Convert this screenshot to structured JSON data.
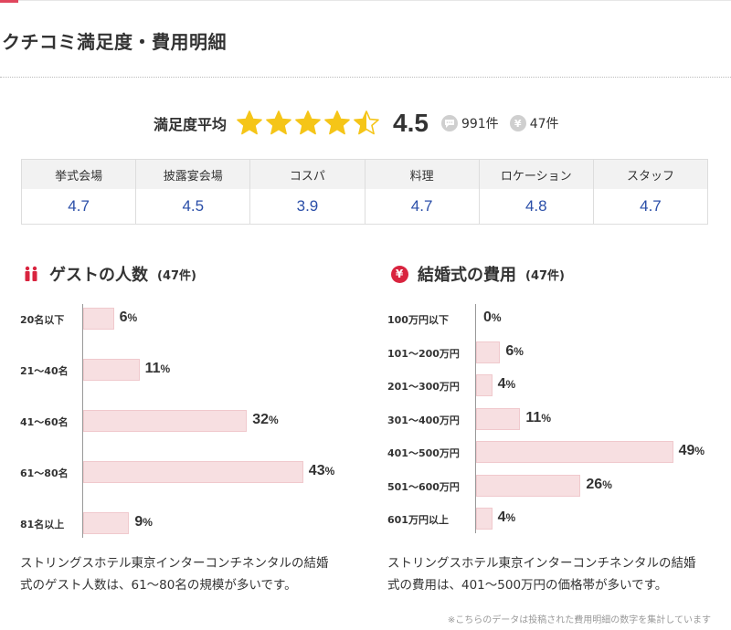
{
  "section_title": "クチコミ満足度・費用明細",
  "summary": {
    "label": "満足度平均",
    "rating": 4.5,
    "rating_text": "4.5",
    "reviews": "991件",
    "costs": "47件",
    "review_icon": "speech-bubble-icon",
    "cost_icon": "yen-icon"
  },
  "scores": [
    {
      "label": "挙式会場",
      "value": "4.7"
    },
    {
      "label": "披露宴会場",
      "value": "4.5"
    },
    {
      "label": "コスパ",
      "value": "3.9"
    },
    {
      "label": "料理",
      "value": "4.7"
    },
    {
      "label": "ロケーション",
      "value": "4.8"
    },
    {
      "label": "スタッフ",
      "value": "4.7"
    }
  ],
  "colors": {
    "accent": "#e0465d",
    "bar": "#f7dfe1",
    "score": "#2a4ea8",
    "star": "#f5c518"
  },
  "guests": {
    "title": "ゲストの人数",
    "count": "(47件)",
    "description": "ストリングスホテル東京インターコンチネンタルの結婚式のゲスト人数は、61〜80名の規模が多いです。"
  },
  "costs": {
    "title": "結婚式の費用",
    "count": "(47件)",
    "description": "ストリングスホテル東京インターコンチネンタルの結婚式の費用は、401〜500万円の価格帯が多いです。"
  },
  "note": "※こちらのデータは投稿された費用明細の数字を集計しています",
  "chart_data": [
    {
      "type": "bar",
      "orientation": "horizontal",
      "categories": [
        "20名以下",
        "21〜40名",
        "41〜60名",
        "61〜80名",
        "81名以上"
      ],
      "values": [
        6,
        11,
        32,
        43,
        9
      ],
      "unit": "%"
    },
    {
      "type": "bar",
      "orientation": "horizontal",
      "categories": [
        "100万円以下",
        "101〜200万円",
        "201〜300万円",
        "301〜400万円",
        "401〜500万円",
        "501〜600万円",
        "601万円以上"
      ],
      "values": [
        0,
        6,
        4,
        11,
        49,
        26,
        4
      ],
      "unit": "%"
    }
  ]
}
